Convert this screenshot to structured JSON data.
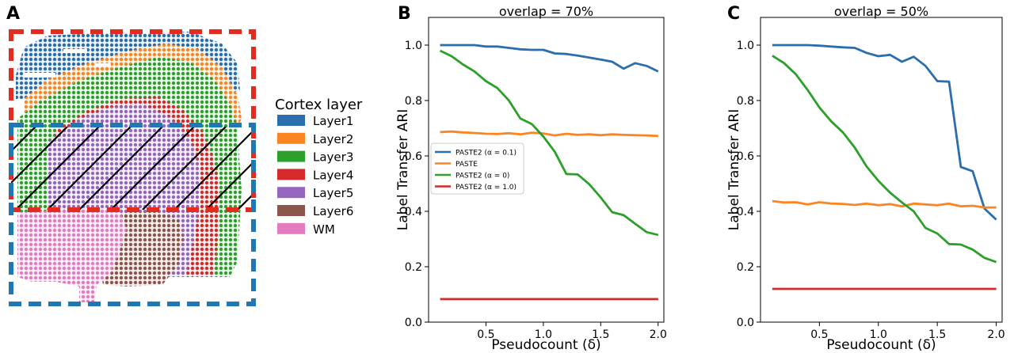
{
  "panel_a": {
    "letter": "A",
    "legend_title": "Cortex layer",
    "layers": [
      {
        "label": "Layer1",
        "color": "#2a6ead"
      },
      {
        "label": "Layer2",
        "color": "#fb8521"
      },
      {
        "label": "Layer3",
        "color": "#2da02b"
      },
      {
        "label": "Layer4",
        "color": "#d42a29"
      },
      {
        "label": "Layer5",
        "color": "#9466be"
      },
      {
        "label": "Layer6",
        "color": "#8b564b"
      },
      {
        "label": "WM",
        "color": "#e37cc1"
      }
    ]
  },
  "chart_data": [
    {
      "panel": "B",
      "type": "line",
      "title": "overlap = 70%",
      "xlabel": "Pseudocount (δ)",
      "ylabel": "Label Transfer ARI",
      "xlim": [
        0.0,
        2.05
      ],
      "ylim": [
        0.0,
        1.1
      ],
      "xticks": [
        "0.5",
        "1.0",
        "1.5",
        "2.0"
      ],
      "xtick_values": [
        0.5,
        1.0,
        1.5,
        2.0
      ],
      "yticks": [
        "0.0",
        "0.2",
        "0.4",
        "0.6",
        "0.8",
        "1.0"
      ],
      "ytick_values": [
        0.0,
        0.2,
        0.4,
        0.6,
        0.8,
        1.0
      ],
      "legend_position": "center-left",
      "x": [
        0.1,
        0.2,
        0.3,
        0.4,
        0.5,
        0.6,
        0.7,
        0.8,
        0.9,
        1.0,
        1.1,
        1.2,
        1.3,
        1.4,
        1.5,
        1.6,
        1.7,
        1.8,
        1.9,
        2.0
      ],
      "series": [
        {
          "name": "PASTE2 (α = 0.1)",
          "color": "#2a6ead",
          "values": [
            1.0,
            1.0,
            1.0,
            1.0,
            0.995,
            0.995,
            0.99,
            0.985,
            0.983,
            0.983,
            0.97,
            0.968,
            0.962,
            0.955,
            0.948,
            0.94,
            0.915,
            0.935,
            0.925,
            0.905
          ]
        },
        {
          "name": "PASTE",
          "color": "#fb8521",
          "values": [
            0.686,
            0.688,
            0.685,
            0.683,
            0.68,
            0.679,
            0.682,
            0.678,
            0.684,
            0.681,
            0.674,
            0.68,
            0.676,
            0.678,
            0.675,
            0.678,
            0.676,
            0.675,
            0.674,
            0.672
          ]
        },
        {
          "name": "PASTE2 (α = 0)",
          "color": "#2da02b",
          "values": [
            0.98,
            0.96,
            0.93,
            0.905,
            0.87,
            0.845,
            0.8,
            0.735,
            0.715,
            0.67,
            0.615,
            0.535,
            0.533,
            0.498,
            0.45,
            0.397,
            0.386,
            0.355,
            0.325,
            0.315
          ]
        },
        {
          "name": "PASTE2 (α = 1.0)",
          "color": "#d42a29",
          "values": [
            0.083,
            0.083,
            0.083,
            0.083,
            0.083,
            0.083,
            0.083,
            0.083,
            0.083,
            0.083,
            0.083,
            0.083,
            0.083,
            0.083,
            0.083,
            0.083,
            0.083,
            0.083,
            0.083,
            0.083
          ]
        }
      ]
    },
    {
      "panel": "C",
      "type": "line",
      "title": "overlap = 50%",
      "xlabel": "Pseudocount (δ)",
      "ylabel": "Label Transfer ARI",
      "xlim": [
        0.0,
        2.05
      ],
      "ylim": [
        0.0,
        1.1
      ],
      "xticks": [
        "0.5",
        "1.0",
        "1.5",
        "2.0"
      ],
      "xtick_values": [
        0.5,
        1.0,
        1.5,
        2.0
      ],
      "yticks": [
        "0.0",
        "0.2",
        "0.4",
        "0.6",
        "0.8",
        "1.0"
      ],
      "ytick_values": [
        0.0,
        0.2,
        0.4,
        0.6,
        0.8,
        1.0
      ],
      "x": [
        0.1,
        0.2,
        0.3,
        0.4,
        0.5,
        0.6,
        0.7,
        0.8,
        0.9,
        1.0,
        1.1,
        1.2,
        1.3,
        1.4,
        1.5,
        1.6,
        1.7,
        1.8,
        1.9,
        2.0
      ],
      "series": [
        {
          "name": "PASTE2 (α = 0.1)",
          "color": "#2a6ead",
          "values": [
            1.0,
            1.0,
            1.0,
            1.0,
            0.998,
            0.995,
            0.992,
            0.99,
            0.972,
            0.96,
            0.965,
            0.94,
            0.958,
            0.925,
            0.87,
            0.868,
            0.56,
            0.545,
            0.41,
            0.37
          ]
        },
        {
          "name": "PASTE",
          "color": "#fb8521",
          "values": [
            0.437,
            0.432,
            0.433,
            0.425,
            0.433,
            0.428,
            0.427,
            0.423,
            0.428,
            0.422,
            0.426,
            0.418,
            0.428,
            0.425,
            0.422,
            0.428,
            0.418,
            0.42,
            0.414,
            0.414
          ]
        },
        {
          "name": "PASTE2 (α = 0)",
          "color": "#2da02b",
          "values": [
            0.962,
            0.935,
            0.895,
            0.838,
            0.775,
            0.725,
            0.685,
            0.63,
            0.562,
            0.51,
            0.467,
            0.432,
            0.4,
            0.34,
            0.32,
            0.282,
            0.28,
            0.262,
            0.232,
            0.217
          ]
        },
        {
          "name": "PASTE2 (α = 1.0)",
          "color": "#d42a29",
          "values": [
            0.12,
            0.12,
            0.12,
            0.12,
            0.12,
            0.12,
            0.12,
            0.12,
            0.12,
            0.12,
            0.12,
            0.12,
            0.12,
            0.12,
            0.12,
            0.12,
            0.12,
            0.12,
            0.12,
            0.12
          ]
        }
      ]
    }
  ]
}
